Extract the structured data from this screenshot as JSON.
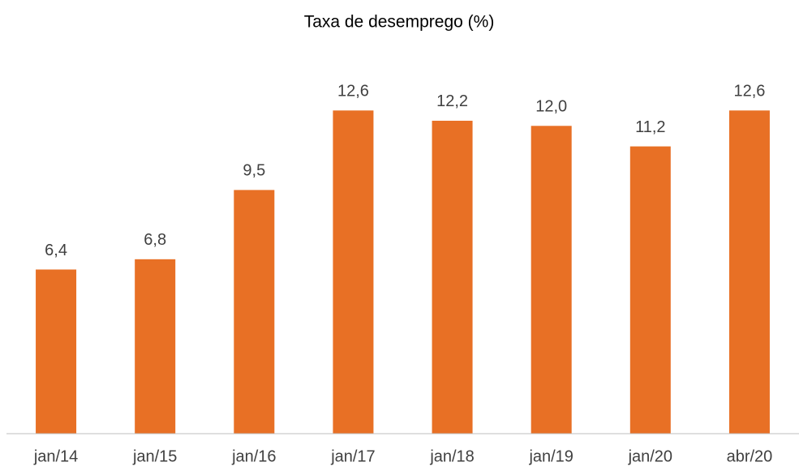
{
  "chart_data": {
    "type": "bar",
    "title": "Taxa de desemprego (%)",
    "categories": [
      "jan/14",
      "jan/15",
      "jan/16",
      "jan/17",
      "jan/18",
      "jan/19",
      "jan/20",
      "abr/20"
    ],
    "values": [
      6.4,
      6.8,
      9.5,
      12.6,
      12.2,
      12.0,
      11.2,
      12.6
    ],
    "value_labels": [
      "6,4",
      "6,8",
      "9,5",
      "12,6",
      "12,2",
      "12,0",
      "11,2",
      "12,6"
    ],
    "color": "#e87025",
    "ylim": [
      0,
      14
    ]
  }
}
